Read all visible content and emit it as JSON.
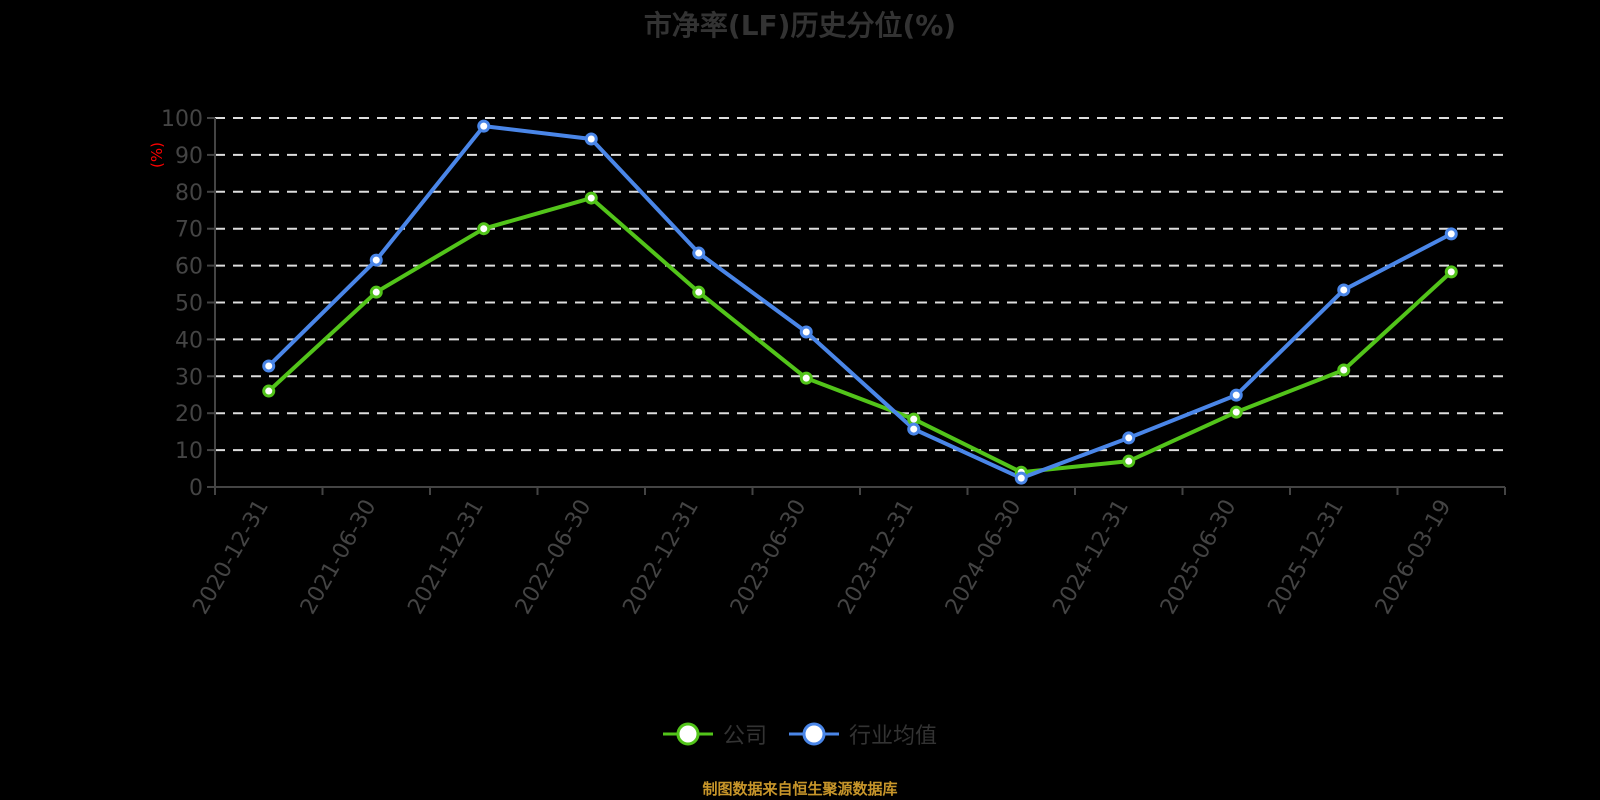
{
  "chart_data": {
    "type": "line",
    "title": "市净率(LF)历史分位(%)",
    "xlabel": "",
    "ylabel": "(%)",
    "ylim": [
      0,
      100
    ],
    "yticks": [
      0,
      10,
      20,
      30,
      40,
      50,
      60,
      70,
      80,
      90,
      100
    ],
    "grid": true,
    "legend_position": "bottom",
    "categories": [
      "2020-12-31",
      "2021-06-30",
      "2021-12-31",
      "2022-06-30",
      "2022-12-31",
      "2023-06-30",
      "2023-12-31",
      "2024-06-30",
      "2024-12-31",
      "2025-06-30",
      "2025-12-31",
      "2026-03-19"
    ],
    "series": [
      {
        "name": "公司",
        "color": "#52c41a",
        "values": [
          26.0,
          52.8,
          70.0,
          78.3,
          52.8,
          29.5,
          18.4,
          4.0,
          7.0,
          20.3,
          31.7,
          58.3
        ]
      },
      {
        "name": "行业均值",
        "color": "#4a86e8",
        "values": [
          32.8,
          61.5,
          97.8,
          94.3,
          63.4,
          42.0,
          15.7,
          2.4,
          13.3,
          24.9,
          53.4,
          68.6
        ]
      }
    ],
    "source": "制图数据来自恒生聚源数据库"
  },
  "title": "市净率(LF)历史分位(%)",
  "y_unit": "(%)",
  "legend": [
    {
      "label": "公司",
      "color": "#52c41a"
    },
    {
      "label": "行业均值",
      "color": "#4a86e8"
    }
  ],
  "source": "制图数据来自恒生聚源数据库"
}
